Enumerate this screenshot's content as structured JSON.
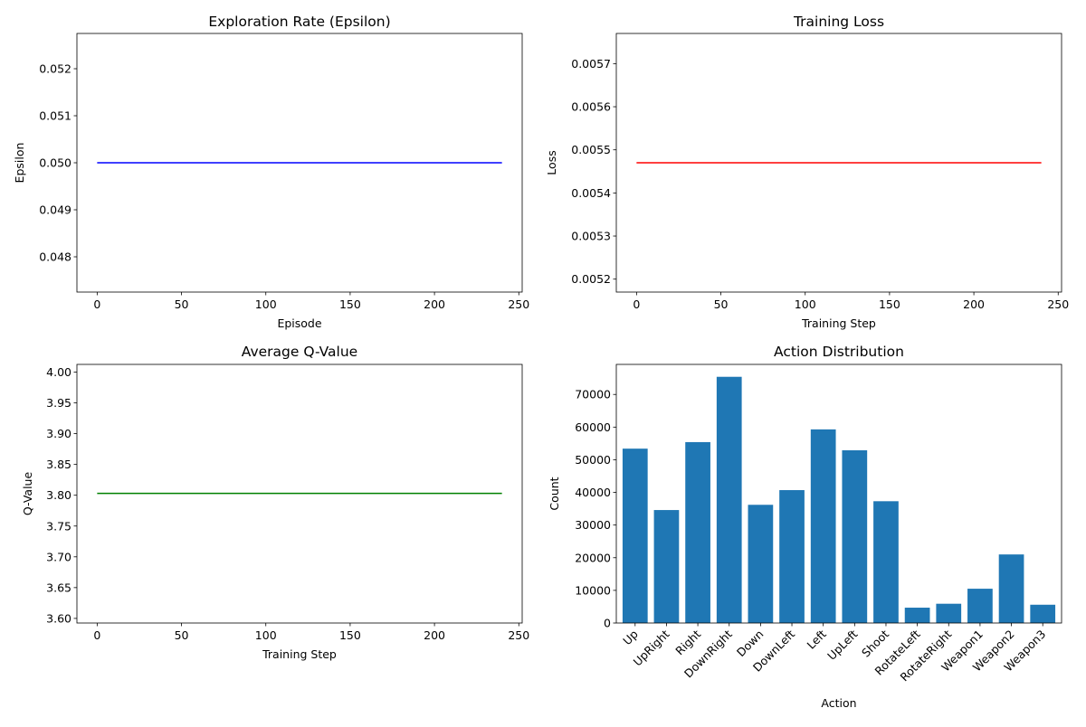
{
  "figure": {
    "background": "#ffffff"
  },
  "chart_data": [
    {
      "type": "line",
      "title": "Exploration Rate (Epsilon)",
      "xlabel": "Episode",
      "ylabel": "Epsilon",
      "xlim": [
        -12,
        252
      ],
      "ylim": [
        0.04725,
        0.05275
      ],
      "xticks": [
        0,
        50,
        100,
        150,
        200,
        250
      ],
      "yticks": [
        0.048,
        0.049,
        0.05,
        0.051,
        0.052
      ],
      "ytick_labels": [
        "0.048",
        "0.049",
        "0.050",
        "0.051",
        "0.052"
      ],
      "series": [
        {
          "color": "#0000ff",
          "x": [
            0,
            240
          ],
          "y": [
            0.05,
            0.05
          ]
        }
      ],
      "grid": false,
      "legend": "none"
    },
    {
      "type": "line",
      "title": "Training Loss",
      "xlabel": "Training Step",
      "ylabel": "Loss",
      "xlim": [
        -12,
        252
      ],
      "ylim": [
        0.00517,
        0.00577
      ],
      "xticks": [
        0,
        50,
        100,
        150,
        200,
        250
      ],
      "yticks": [
        0.0052,
        0.0053,
        0.0054,
        0.0055,
        0.0056,
        0.0057
      ],
      "ytick_labels": [
        "0.0052",
        "0.0053",
        "0.0054",
        "0.0055",
        "0.0056",
        "0.0057"
      ],
      "series": [
        {
          "color": "#ff0000",
          "x": [
            0,
            240
          ],
          "y": [
            0.00547,
            0.00547
          ]
        }
      ],
      "grid": false,
      "legend": "none"
    },
    {
      "type": "line",
      "title": "Average Q-Value",
      "xlabel": "Training Step",
      "ylabel": "Q-Value",
      "xlim": [
        -12,
        252
      ],
      "ylim": [
        3.5925,
        4.0125
      ],
      "xticks": [
        0,
        50,
        100,
        150,
        200,
        250
      ],
      "yticks": [
        3.6,
        3.65,
        3.7,
        3.75,
        3.8,
        3.85,
        3.9,
        3.95,
        4.0
      ],
      "ytick_labels": [
        "3.60",
        "3.65",
        "3.70",
        "3.75",
        "3.80",
        "3.85",
        "3.90",
        "3.95",
        "4.00"
      ],
      "series": [
        {
          "color": "#008000",
          "x": [
            0,
            240
          ],
          "y": [
            3.803,
            3.803
          ]
        }
      ],
      "grid": false,
      "legend": "none"
    },
    {
      "type": "bar",
      "title": "Action Distribution",
      "xlabel": "Action",
      "ylabel": "Count",
      "categories": [
        "Up",
        "UpRight",
        "Right",
        "DownRight",
        "Down",
        "DownLeft",
        "Left",
        "UpLeft",
        "Shoot",
        "RotateLeft",
        "RotateRight",
        "Weapon1",
        "Weapon2",
        "Weapon3"
      ],
      "values": [
        53400,
        34600,
        55400,
        75400,
        36200,
        40700,
        59300,
        52900,
        37300,
        4700,
        5900,
        10500,
        21000,
        5600
      ],
      "color": "#1f77b4",
      "ylim": [
        0,
        79200
      ],
      "yticks": [
        0,
        10000,
        20000,
        30000,
        40000,
        50000,
        60000,
        70000
      ],
      "ytick_labels": [
        "0",
        "10000",
        "20000",
        "30000",
        "40000",
        "50000",
        "60000",
        "70000"
      ],
      "xtick_rotation": 45,
      "grid": false,
      "legend": "none"
    }
  ]
}
